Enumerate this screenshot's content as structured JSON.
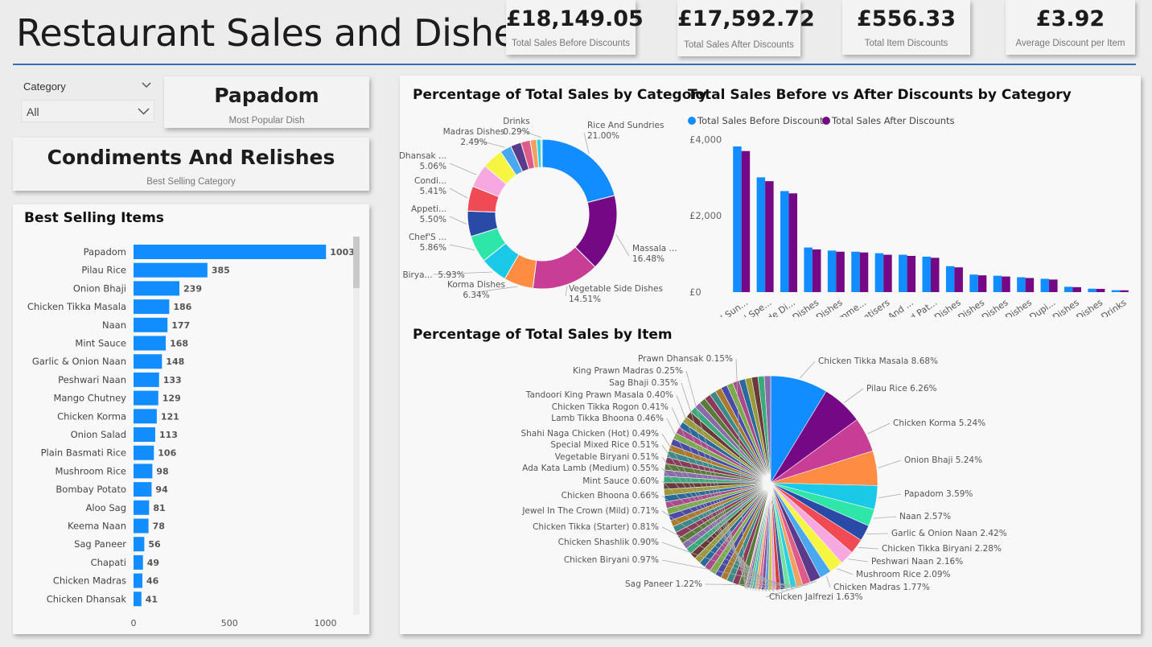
{
  "header": {
    "title": "Restaurant Sales and Dishes"
  },
  "kpis": [
    {
      "value": "£18,149.05",
      "label": "Total Sales Before Discounts"
    },
    {
      "value": "£17,592.72",
      "label": "Total Sales After Discounts"
    },
    {
      "value": "£556.33",
      "label": "Total Item Discounts"
    },
    {
      "value": "£3.92",
      "label": "Average Discount per Item"
    }
  ],
  "filter": {
    "label": "Category",
    "value": "All"
  },
  "popular_dish": {
    "value": "Papadom",
    "label": "Most Popular Dish"
  },
  "best_category": {
    "value": "Condiments And Relishes",
    "label": "Best Selling Category"
  },
  "colors": {
    "accent": "#118dff",
    "purple": "#750985",
    "rule": "#2f6fb2"
  },
  "chart_data": [
    {
      "type": "bar",
      "orientation": "horizontal",
      "title": "Best Selling Items",
      "categories": [
        "Papadom",
        "Pilau Rice",
        "Onion Bhaji",
        "Chicken Tikka Masala",
        "Naan",
        "Mint Sauce",
        "Garlic & Onion Naan",
        "Peshwari Naan",
        "Mango Chutney",
        "Chicken Korma",
        "Onion Salad",
        "Plain Basmati Rice",
        "Mushroom Rice",
        "Bombay Potato",
        "Aloo Sag",
        "Keema Naan",
        "Sag Paneer",
        "Chapati",
        "Chicken Madras",
        "Chicken Dhansak"
      ],
      "values": [
        1003,
        385,
        239,
        186,
        177,
        168,
        148,
        133,
        129,
        121,
        113,
        106,
        98,
        94,
        81,
        78,
        56,
        49,
        46,
        41
      ],
      "xlim": [
        0,
        1100
      ],
      "xticks": [
        "0",
        "500",
        "1000"
      ],
      "xtick_values": [
        0,
        500,
        1000
      ]
    },
    {
      "type": "pie",
      "variant": "donut",
      "title": "Percentage of Total Sales by Category",
      "labels": [
        {
          "text": "Rice And Sundries",
          "pct": "21.00%",
          "value": 21.0,
          "color": "#118dff"
        },
        {
          "text": "Massala ...",
          "pct": "16.48%",
          "value": 16.48,
          "color": "#750985"
        },
        {
          "text": "Vegetable Side Dishes",
          "pct": "14.51%",
          "value": 14.51,
          "color": "#c83d95"
        },
        {
          "text": "Korma Dishes",
          "pct": "6.34%",
          "value": 6.34,
          "color": "#ff8c42"
        },
        {
          "text": "Birya...",
          "pct": "5.93%",
          "value": 5.93,
          "color": "#1ac8e8"
        },
        {
          "text": "Chef'S ...",
          "pct": "5.86%",
          "value": 5.86,
          "color": "#2ee6a8"
        },
        {
          "text": "Appeti...",
          "pct": "5.50%",
          "value": 5.5,
          "color": "#2a4aa8"
        },
        {
          "text": "Condi...",
          "pct": "5.41%",
          "value": 5.41,
          "color": "#f04b55"
        },
        {
          "text": "Dhansak ...",
          "pct": "5.06%",
          "value": 5.06,
          "color": "#f8a8e0"
        },
        {
          "text": "",
          "pct": "",
          "value": 4.5,
          "color": "#f5f542"
        },
        {
          "text": "Madras Dishes",
          "pct": "2.49%",
          "value": 2.49,
          "color": "#4aa8f0"
        },
        {
          "text": "",
          "pct": "",
          "value": 2.3,
          "color": "#5a3a8a"
        },
        {
          "text": "",
          "pct": "",
          "value": 2.0,
          "color": "#e05a8a"
        },
        {
          "text": "",
          "pct": "",
          "value": 1.4,
          "color": "#f0a060"
        },
        {
          "text": "",
          "pct": "",
          "value": 0.9,
          "color": "#2ad0e0"
        },
        {
          "text": "Drinks",
          "pct": "0.29%",
          "value": 0.29,
          "color": "#70e0a0"
        }
      ]
    },
    {
      "type": "bar",
      "title": "Total Sales Before vs After Discounts by Category",
      "categories": [
        "Rice And Sun...",
        "Massala And Spe...",
        "Vegetable Side Di...",
        "Korma Dishes",
        "Biryani Dishes",
        "Chef'S Recomme...",
        "Appetisers",
        "Condiments And ...",
        "Dhansak And Pat...",
        "Tandoori Dishes",
        "Madras Dishes",
        "Balti Dishes",
        "Bhoona Dishes",
        "Rogon And Dupi...",
        "Curry Dishes",
        "Vindaloo Dishes",
        "Drinks"
      ],
      "series": [
        {
          "name": "Total Sales Before Discounts",
          "color": "#118dff",
          "values": [
            3820,
            3010,
            2650,
            1170,
            1090,
            1060,
            1020,
            980,
            930,
            680,
            460,
            430,
            390,
            350,
            140,
            90,
            50
          ]
        },
        {
          "name": "Total Sales After Discounts",
          "color": "#750985",
          "values": [
            3700,
            2910,
            2590,
            1120,
            1060,
            1040,
            980,
            950,
            900,
            650,
            440,
            410,
            370,
            330,
            130,
            85,
            48
          ]
        }
      ],
      "ylim": [
        0,
        4200
      ],
      "yticks": [
        "£4,000",
        "£2,000",
        "£0"
      ],
      "ytick_values": [
        4000,
        2000,
        0
      ],
      "legend": "top-left"
    },
    {
      "type": "pie",
      "title": "Percentage of Total Sales by Item",
      "labeled_slices": [
        {
          "text": "Chicken Tikka Masala 8.68%",
          "value": 8.68,
          "color": "#118dff"
        },
        {
          "text": "Pilau Rice 6.26%",
          "value": 6.26,
          "color": "#750985"
        },
        {
          "text": "Chicken Korma 5.24%",
          "value": 5.24,
          "color": "#c83d95"
        },
        {
          "text": "Onion Bhaji 5.24%",
          "value": 5.24,
          "color": "#ff8c42"
        },
        {
          "text": "Papadom 3.59%",
          "value": 3.59,
          "color": "#1ac8e8"
        },
        {
          "text": "Naan 2.57%",
          "value": 2.57,
          "color": "#2ee6a8"
        },
        {
          "text": "Garlic & Onion Naan 2.42%",
          "value": 2.42,
          "color": "#2a4aa8"
        },
        {
          "text": "Chicken Tikka Biryani 2.28%",
          "value": 2.28,
          "color": "#f04b55"
        },
        {
          "text": "Peshwari Naan 2.16%",
          "value": 2.16,
          "color": "#f8a8e0"
        },
        {
          "text": "Mushroom Rice 2.09%",
          "value": 2.09,
          "color": "#f5f542"
        },
        {
          "text": "Chicken Madras 1.77%",
          "value": 1.77,
          "color": "#4aa8f0"
        },
        {
          "text": "Chicken Jalfrezi 1.63%",
          "value": 1.63,
          "color": "#5a3a8a"
        },
        {
          "text": "Sag Paneer 1.22%",
          "value": 1.22,
          "color": "#e05a8a"
        },
        {
          "text": "Chicken Biryani 0.97%",
          "value": 0.97,
          "color": "#f0a060"
        },
        {
          "text": "Chicken Shashlik 0.90%",
          "value": 0.9,
          "color": "#2ad0e0"
        },
        {
          "text": "Chicken Tikka (Starter) 0.81%",
          "value": 0.81,
          "color": "#70e0a0"
        },
        {
          "text": "Jewel In The Crown (Mild) 0.71%",
          "value": 0.71,
          "color": "#3a5aa0"
        },
        {
          "text": "Chicken Bhoona 0.66%",
          "value": 0.66,
          "color": "#d04040"
        },
        {
          "text": "Mint Sauce 0.60%",
          "value": 0.6,
          "color": "#e8a0d0"
        },
        {
          "text": "Ada Kata Lamb (Medium) 0.55%",
          "value": 0.55,
          "color": "#c8c840"
        },
        {
          "text": "Vegetable Biryani 0.51%",
          "value": 0.51,
          "color": "#60a0e0"
        },
        {
          "text": "Special Mixed Rice 0.51%",
          "value": 0.51,
          "color": "#7a4a9a"
        },
        {
          "text": "Shahi Naga Chicken (Hot) 0.49%",
          "value": 0.49,
          "color": "#d87090"
        },
        {
          "text": "Lamb Tikka Bhoona 0.46%",
          "value": 0.46,
          "color": "#e0b070"
        },
        {
          "text": "Chicken Tikka Rogon 0.41%",
          "value": 0.41,
          "color": "#40b0c0"
        },
        {
          "text": "Tandoori King Prawn Masala 0.40%",
          "value": 0.4,
          "color": "#50c890"
        },
        {
          "text": "Sag Bhaji 0.35%",
          "value": 0.35,
          "color": "#6a6ab0"
        },
        {
          "text": "King Prawn Madras 0.25%",
          "value": 0.25,
          "color": "#b05050"
        },
        {
          "text": "Prawn Dhansak 0.15%",
          "value": 0.15,
          "color": "#c0a0e0"
        }
      ]
    }
  ]
}
